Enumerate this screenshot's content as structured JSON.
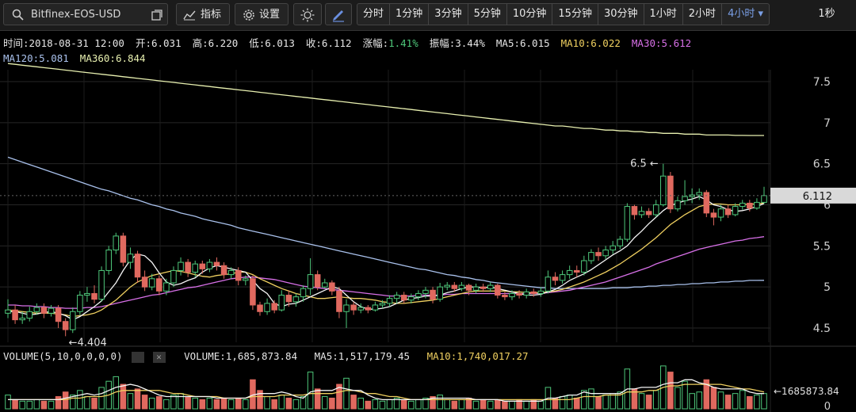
{
  "toolbar": {
    "symbol": "Bitfinex-EOS-USD",
    "indicator_label": "指标",
    "settings_label": "设置",
    "timeframes": [
      "分时",
      "1分钟",
      "3分钟",
      "5分钟",
      "10分钟",
      "15分钟",
      "30分钟",
      "1小时",
      "2小时",
      "4小时"
    ],
    "active_timeframe": "4小时",
    "refresh_label": "1秒"
  },
  "info": {
    "time": "时间:2018-08-31 12:00",
    "open": "开:6.031",
    "high": "高:6.220",
    "low": "低:6.013",
    "close": "收:6.112",
    "change_label": "涨幅:",
    "change_value": "1.41%",
    "amplitude": "振幅:3.44%",
    "ma5": "MA5:6.015",
    "ma10": "MA10:6.022",
    "ma30": "MA30:5.612",
    "ma120": "MA120:5.081",
    "ma360": "MA360:6.844"
  },
  "volume_info": {
    "title": "VOLUME(5,10,0,0,0,0)",
    "volume": "VOLUME:1,685,873.84",
    "ma5": "MA5:1,517,179.45",
    "ma10": "MA10:1,740,017.27"
  },
  "chart_data": {
    "type": "candlestick",
    "y_ticks": [
      4.5,
      5,
      5.5,
      6,
      6.5,
      7,
      7.5
    ],
    "y_tick_labels": [
      "4.5",
      "5",
      "5.5",
      "6",
      "6.5",
      "7",
      "7.5"
    ],
    "ylim": [
      4.3,
      7.75
    ],
    "current_price": "6.112",
    "high_marker": "6.5",
    "low_marker": "4.404",
    "volume_tick_label": "0",
    "volume_marker": "1685873.84",
    "colors": {
      "up": "#4ec77a",
      "down": "#e0695f",
      "ma5": "#f5f5f5",
      "ma10": "#f0d060",
      "ma30": "#d870e8",
      "ma120": "#a9c1ec",
      "ma360": "#e8f0b0"
    },
    "candles": [
      [
        4.68,
        4.72,
        4.62,
        4.85
      ],
      [
        4.72,
        4.6,
        4.55,
        4.78
      ],
      [
        4.6,
        4.62,
        4.55,
        4.7
      ],
      [
        4.62,
        4.7,
        4.58,
        4.76
      ],
      [
        4.7,
        4.75,
        4.66,
        4.8
      ],
      [
        4.75,
        4.68,
        4.62,
        4.8
      ],
      [
        4.68,
        4.74,
        4.64,
        4.78
      ],
      [
        4.74,
        4.58,
        4.5,
        4.78
      ],
      [
        4.58,
        4.48,
        4.4,
        4.62
      ],
      [
        4.48,
        4.7,
        4.44,
        4.75
      ],
      [
        4.7,
        4.9,
        4.66,
        4.95
      ],
      [
        4.9,
        4.92,
        4.82,
        5.0
      ],
      [
        4.92,
        4.85,
        4.8,
        5.02
      ],
      [
        4.85,
        5.2,
        4.82,
        5.25
      ],
      [
        5.2,
        5.45,
        5.15,
        5.5
      ],
      [
        5.45,
        5.62,
        5.4,
        5.66
      ],
      [
        5.62,
        5.3,
        5.25,
        5.66
      ],
      [
        5.3,
        5.4,
        5.22,
        5.48
      ],
      [
        5.4,
        5.12,
        5.05,
        5.44
      ],
      [
        5.12,
        5.0,
        4.95,
        5.2
      ],
      [
        5.0,
        5.1,
        4.96,
        5.16
      ],
      [
        5.1,
        4.95,
        4.9,
        5.14
      ],
      [
        4.95,
        5.05,
        4.9,
        5.1
      ],
      [
        5.05,
        5.2,
        5.0,
        5.25
      ],
      [
        5.2,
        5.3,
        5.14,
        5.36
      ],
      [
        5.3,
        5.18,
        5.12,
        5.34
      ],
      [
        5.18,
        5.28,
        5.12,
        5.32
      ],
      [
        5.28,
        5.22,
        5.16,
        5.32
      ],
      [
        5.22,
        5.3,
        5.18,
        5.34
      ],
      [
        5.3,
        5.26,
        5.2,
        5.36
      ],
      [
        5.26,
        5.15,
        5.1,
        5.3
      ],
      [
        5.15,
        5.2,
        5.1,
        5.24
      ],
      [
        5.2,
        5.08,
        5.02,
        5.24
      ],
      [
        5.08,
        5.1,
        5.02,
        5.14
      ],
      [
        5.1,
        4.78,
        4.72,
        5.14
      ],
      [
        4.78,
        4.7,
        4.65,
        4.82
      ],
      [
        4.7,
        4.8,
        4.66,
        4.86
      ],
      [
        4.8,
        4.72,
        4.68,
        4.84
      ],
      [
        4.72,
        4.9,
        4.7,
        4.96
      ],
      [
        4.9,
        4.82,
        4.76,
        4.96
      ],
      [
        4.82,
        4.88,
        4.76,
        4.92
      ],
      [
        4.88,
        4.98,
        4.82,
        5.02
      ],
      [
        4.98,
        5.15,
        4.9,
        5.35
      ],
      [
        5.15,
        5.0,
        4.96,
        5.2
      ],
      [
        5.0,
        5.05,
        4.98,
        5.1
      ],
      [
        5.05,
        4.95,
        4.9,
        5.08
      ],
      [
        4.95,
        4.7,
        4.62,
        5.0
      ],
      [
        4.7,
        4.78,
        4.5,
        4.85
      ],
      [
        4.78,
        4.72,
        4.66,
        4.82
      ],
      [
        4.72,
        4.75,
        4.68,
        4.8
      ],
      [
        4.75,
        4.72,
        4.68,
        4.78
      ],
      [
        4.72,
        4.78,
        4.7,
        4.82
      ],
      [
        4.78,
        4.8,
        4.74,
        4.84
      ],
      [
        4.8,
        4.86,
        4.76,
        4.9
      ],
      [
        4.86,
        4.9,
        4.8,
        4.94
      ],
      [
        4.9,
        4.84,
        4.8,
        4.94
      ],
      [
        4.84,
        4.88,
        4.8,
        4.92
      ],
      [
        4.88,
        4.92,
        4.84,
        4.96
      ],
      [
        4.92,
        4.96,
        4.86,
        5.0
      ],
      [
        4.96,
        4.85,
        4.8,
        5.0
      ],
      [
        4.85,
        5.0,
        4.82,
        5.05
      ],
      [
        5.0,
        5.02,
        4.96,
        5.06
      ],
      [
        5.02,
        4.98,
        4.94,
        5.06
      ],
      [
        4.98,
        5.02,
        4.95,
        5.06
      ],
      [
        5.02,
        4.96,
        4.9,
        5.04
      ],
      [
        4.96,
        5.0,
        4.92,
        5.04
      ],
      [
        5.0,
        4.98,
        4.94,
        5.04
      ],
      [
        4.98,
        5.02,
        4.94,
        5.06
      ],
      [
        5.02,
        4.9,
        4.86,
        5.04
      ],
      [
        4.9,
        4.88,
        4.84,
        4.94
      ],
      [
        4.88,
        4.92,
        4.84,
        4.96
      ],
      [
        4.92,
        4.9,
        4.86,
        4.96
      ],
      [
        4.9,
        4.94,
        4.86,
        4.98
      ],
      [
        4.94,
        4.92,
        4.88,
        4.98
      ],
      [
        4.92,
        4.95,
        4.88,
        5.0
      ],
      [
        4.95,
        5.12,
        4.92,
        5.2
      ],
      [
        5.12,
        5.08,
        5.02,
        5.18
      ],
      [
        5.08,
        5.15,
        5.04,
        5.2
      ],
      [
        5.15,
        5.2,
        5.1,
        5.26
      ],
      [
        5.2,
        5.18,
        5.12,
        5.26
      ],
      [
        5.18,
        5.32,
        5.14,
        5.38
      ],
      [
        5.32,
        5.42,
        5.28,
        5.46
      ],
      [
        5.42,
        5.38,
        5.32,
        5.48
      ],
      [
        5.38,
        5.45,
        5.34,
        5.5
      ],
      [
        5.45,
        5.5,
        5.4,
        5.56
      ],
      [
        5.5,
        5.58,
        5.46,
        5.62
      ],
      [
        5.58,
        5.98,
        5.55,
        6.02
      ],
      [
        5.98,
        5.88,
        5.82,
        6.0
      ],
      [
        5.88,
        5.92,
        5.84,
        5.98
      ],
      [
        5.92,
        5.88,
        5.84,
        5.96
      ],
      [
        5.88,
        6.0,
        5.85,
        6.06
      ],
      [
        6.0,
        6.35,
        5.98,
        6.5
      ],
      [
        6.35,
        5.95,
        5.9,
        6.4
      ],
      [
        5.95,
        6.05,
        5.92,
        6.1
      ],
      [
        6.05,
        6.1,
        6.0,
        6.3
      ],
      [
        6.1,
        6.12,
        6.02,
        6.2
      ],
      [
        6.12,
        6.15,
        6.06,
        6.2
      ],
      [
        6.15,
        5.9,
        5.85,
        6.18
      ],
      [
        5.9,
        5.85,
        5.75,
        5.95
      ],
      [
        5.85,
        5.95,
        5.8,
        6.0
      ],
      [
        5.95,
        5.88,
        5.84,
        6.0
      ],
      [
        5.88,
        5.98,
        5.86,
        6.02
      ],
      [
        5.98,
        6.02,
        5.94,
        6.06
      ],
      [
        6.02,
        5.96,
        5.92,
        6.06
      ],
      [
        5.96,
        6.03,
        5.94,
        6.08
      ],
      [
        6.03,
        6.112,
        6.013,
        6.22
      ]
    ],
    "volumes": [
      0.9,
      0.6,
      0.5,
      0.5,
      0.6,
      0.5,
      0.5,
      0.8,
      1.1,
      0.9,
      1.2,
      0.8,
      0.7,
      1.4,
      1.8,
      2.1,
      1.6,
      1.0,
      1.3,
      0.9,
      0.7,
      0.8,
      0.6,
      0.9,
      1.0,
      0.8,
      0.7,
      0.6,
      0.7,
      0.6,
      0.7,
      0.6,
      0.7,
      0.6,
      1.9,
      1.2,
      0.8,
      0.6,
      0.9,
      0.7,
      0.6,
      0.8,
      2.4,
      1.3,
      0.8,
      0.7,
      1.6,
      2.0,
      0.9,
      0.7,
      0.5,
      0.6,
      0.5,
      0.6,
      0.7,
      0.6,
      0.5,
      0.6,
      0.7,
      0.8,
      0.9,
      0.6,
      0.5,
      0.6,
      0.7,
      0.5,
      0.6,
      0.5,
      0.6,
      0.5,
      0.5,
      0.6,
      0.5,
      0.6,
      0.5,
      1.4,
      0.7,
      0.8,
      0.9,
      0.7,
      1.2,
      1.3,
      0.8,
      0.9,
      1.0,
      1.1,
      2.6,
      1.3,
      1.0,
      0.9,
      1.2,
      2.8,
      2.4,
      1.4,
      1.8,
      1.0,
      1.1,
      1.9,
      1.4,
      1.1,
      0.9,
      1.0,
      1.2,
      0.8,
      0.9,
      1.0
    ],
    "vol_ma5": [
      0.6,
      0.6,
      0.6,
      0.6,
      0.6,
      0.6,
      0.6,
      0.6,
      0.7,
      0.8,
      0.9,
      1.0,
      0.9,
      1.0,
      1.2,
      1.4,
      1.5,
      1.6,
      1.5,
      1.3,
      1.1,
      0.9,
      0.8,
      0.8,
      0.8,
      0.8,
      0.8,
      0.8,
      0.8,
      0.7,
      0.7,
      0.7,
      0.7,
      0.7,
      0.9,
      1.0,
      1.0,
      1.0,
      1.1,
      1.0,
      0.8,
      0.7,
      1.1,
      1.2,
      1.2,
      1.2,
      1.4,
      1.3,
      1.2,
      1.2,
      0.9,
      0.7,
      0.6,
      0.6,
      0.6,
      0.6,
      0.6,
      0.6,
      0.6,
      0.7,
      0.7,
      0.7,
      0.7,
      0.7,
      0.7,
      0.6,
      0.6,
      0.6,
      0.6,
      0.5,
      0.5,
      0.5,
      0.5,
      0.5,
      0.5,
      0.7,
      0.7,
      0.8,
      0.9,
      0.9,
      1.1,
      1.0,
      1.0,
      1.0,
      1.0,
      1.0,
      1.3,
      1.3,
      1.4,
      1.4,
      1.4,
      1.6,
      1.7,
      1.7,
      1.9,
      1.9,
      1.7,
      1.6,
      1.4,
      1.3,
      1.3,
      1.3,
      1.3,
      1.1,
      1.0,
      1.0
    ],
    "vol_ma10": [
      0.6,
      0.6,
      0.6,
      0.6,
      0.6,
      0.6,
      0.6,
      0.6,
      0.6,
      0.7,
      0.7,
      0.8,
      0.8,
      0.8,
      0.9,
      1.1,
      1.2,
      1.2,
      1.2,
      1.2,
      1.2,
      1.2,
      1.1,
      1.0,
      1.0,
      0.9,
      0.8,
      0.8,
      0.8,
      0.8,
      0.7,
      0.7,
      0.7,
      0.7,
      0.8,
      0.8,
      0.8,
      0.8,
      0.9,
      0.9,
      0.9,
      0.9,
      1.0,
      1.0,
      1.0,
      1.0,
      1.1,
      1.2,
      1.2,
      1.1,
      1.0,
      1.0,
      0.9,
      0.8,
      0.8,
      0.7,
      0.6,
      0.6,
      0.6,
      0.6,
      0.6,
      0.6,
      0.6,
      0.6,
      0.6,
      0.6,
      0.6,
      0.6,
      0.6,
      0.6,
      0.6,
      0.6,
      0.6,
      0.6,
      0.6,
      0.6,
      0.6,
      0.6,
      0.6,
      0.7,
      0.8,
      0.8,
      0.8,
      0.9,
      0.9,
      0.9,
      1.1,
      1.1,
      1.1,
      1.2,
      1.2,
      1.4,
      1.5,
      1.5,
      1.6,
      1.6,
      1.6,
      1.6,
      1.6,
      1.6,
      1.5,
      1.4,
      1.3,
      1.3,
      1.2,
      1.1
    ],
    "ma5": [
      4.7,
      4.7,
      4.68,
      4.66,
      4.67,
      4.69,
      4.7,
      4.68,
      4.65,
      4.6,
      4.64,
      4.7,
      4.76,
      4.83,
      4.94,
      5.05,
      5.2,
      5.33,
      5.4,
      5.38,
      5.3,
      5.17,
      5.06,
      5.02,
      5.04,
      5.08,
      5.11,
      5.18,
      5.23,
      5.26,
      5.24,
      5.22,
      5.2,
      5.18,
      5.08,
      4.98,
      4.92,
      4.8,
      4.76,
      4.79,
      4.8,
      4.84,
      4.88,
      4.92,
      4.96,
      5.0,
      4.98,
      4.9,
      4.82,
      4.76,
      4.73,
      4.73,
      4.74,
      4.76,
      4.8,
      4.84,
      4.86,
      4.87,
      4.89,
      4.89,
      4.9,
      4.93,
      4.95,
      4.98,
      5.0,
      5.0,
      4.99,
      5.0,
      4.98,
      4.96,
      4.94,
      4.92,
      4.9,
      4.9,
      4.91,
      4.94,
      4.97,
      5.02,
      5.08,
      5.12,
      5.16,
      5.21,
      5.27,
      5.33,
      5.39,
      5.44,
      5.5,
      5.6,
      5.68,
      5.77,
      5.85,
      5.93,
      5.99,
      6.02,
      6.05,
      6.07,
      6.1,
      6.06,
      6.0,
      5.98,
      5.94,
      5.92,
      5.93,
      5.95,
      5.98,
      6.015
    ],
    "ma10": [
      4.72,
      4.71,
      4.7,
      4.69,
      4.68,
      4.68,
      4.68,
      4.67,
      4.66,
      4.64,
      4.65,
      4.66,
      4.68,
      4.72,
      4.78,
      4.84,
      4.92,
      5.0,
      5.06,
      5.1,
      5.14,
      5.16,
      5.18,
      5.2,
      5.19,
      5.17,
      5.15,
      5.13,
      5.12,
      5.14,
      5.15,
      5.16,
      5.18,
      5.18,
      5.15,
      5.1,
      5.06,
      5.02,
      4.98,
      4.95,
      4.92,
      4.9,
      4.88,
      4.86,
      4.86,
      4.87,
      4.88,
      4.87,
      4.86,
      4.86,
      4.85,
      4.84,
      4.82,
      4.81,
      4.8,
      4.8,
      4.81,
      4.82,
      4.83,
      4.84,
      4.86,
      4.88,
      4.9,
      4.92,
      4.94,
      4.95,
      4.95,
      4.95,
      4.95,
      4.95,
      4.94,
      4.94,
      4.93,
      4.93,
      4.93,
      4.94,
      4.95,
      4.97,
      5.0,
      5.03,
      5.06,
      5.1,
      5.14,
      5.18,
      5.23,
      5.28,
      5.34,
      5.4,
      5.46,
      5.53,
      5.6,
      5.68,
      5.76,
      5.82,
      5.88,
      5.93,
      5.98,
      6.0,
      6.01,
      6.01,
      6.0,
      6.0,
      6.0,
      6.01,
      6.01,
      6.022
    ],
    "ma30": [
      4.78,
      4.78,
      4.77,
      4.77,
      4.76,
      4.76,
      4.75,
      4.75,
      4.74,
      4.74,
      4.74,
      4.75,
      4.75,
      4.76,
      4.78,
      4.8,
      4.82,
      4.84,
      4.86,
      4.88,
      4.9,
      4.91,
      4.93,
      4.95,
      4.97,
      4.99,
      5.0,
      5.02,
      5.04,
      5.06,
      5.08,
      5.1,
      5.11,
      5.12,
      5.12,
      5.11,
      5.1,
      5.09,
      5.07,
      5.05,
      5.03,
      5.01,
      5.0,
      4.99,
      4.98,
      4.97,
      4.96,
      4.95,
      4.94,
      4.93,
      4.92,
      4.91,
      4.9,
      4.89,
      4.89,
      4.89,
      4.89,
      4.9,
      4.9,
      4.9,
      4.9,
      4.91,
      4.91,
      4.92,
      4.92,
      4.92,
      4.92,
      4.92,
      4.92,
      4.92,
      4.92,
      4.92,
      4.92,
      4.92,
      4.92,
      4.93,
      4.94,
      4.95,
      4.96,
      4.98,
      5.0,
      5.02,
      5.04,
      5.06,
      5.09,
      5.12,
      5.15,
      5.18,
      5.21,
      5.24,
      5.28,
      5.31,
      5.34,
      5.37,
      5.4,
      5.43,
      5.46,
      5.48,
      5.5,
      5.52,
      5.54,
      5.56,
      5.57,
      5.59,
      5.6,
      5.612
    ],
    "ma120": [
      6.58,
      6.55,
      6.52,
      6.49,
      6.46,
      6.43,
      6.4,
      6.37,
      6.34,
      6.31,
      6.28,
      6.25,
      6.22,
      6.19,
      6.17,
      6.14,
      6.11,
      6.08,
      6.06,
      6.03,
      6.0,
      5.98,
      5.95,
      5.93,
      5.9,
      5.88,
      5.86,
      5.83,
      5.81,
      5.79,
      5.77,
      5.75,
      5.72,
      5.7,
      5.68,
      5.66,
      5.64,
      5.62,
      5.6,
      5.58,
      5.56,
      5.54,
      5.52,
      5.5,
      5.48,
      5.46,
      5.44,
      5.42,
      5.4,
      5.38,
      5.36,
      5.34,
      5.32,
      5.3,
      5.28,
      5.26,
      5.24,
      5.22,
      5.21,
      5.19,
      5.17,
      5.15,
      5.14,
      5.12,
      5.11,
      5.09,
      5.08,
      5.06,
      5.05,
      5.04,
      5.03,
      5.02,
      5.01,
      5.0,
      4.99,
      4.99,
      4.98,
      4.98,
      4.98,
      4.98,
      4.98,
      4.98,
      4.98,
      4.98,
      4.99,
      4.99,
      4.99,
      5.0,
      5.0,
      5.01,
      5.01,
      5.02,
      5.02,
      5.03,
      5.03,
      5.04,
      5.04,
      5.05,
      5.05,
      5.06,
      5.06,
      5.07,
      5.07,
      5.08,
      5.08,
      5.081
    ],
    "ma360": [
      7.72,
      7.71,
      7.7,
      7.69,
      7.68,
      7.67,
      7.66,
      7.65,
      7.64,
      7.63,
      7.62,
      7.61,
      7.6,
      7.59,
      7.58,
      7.57,
      7.56,
      7.55,
      7.54,
      7.53,
      7.52,
      7.51,
      7.5,
      7.49,
      7.48,
      7.47,
      7.46,
      7.45,
      7.44,
      7.43,
      7.42,
      7.41,
      7.4,
      7.39,
      7.38,
      7.37,
      7.36,
      7.35,
      7.34,
      7.33,
      7.32,
      7.31,
      7.3,
      7.29,
      7.28,
      7.27,
      7.26,
      7.25,
      7.24,
      7.23,
      7.22,
      7.21,
      7.2,
      7.19,
      7.18,
      7.17,
      7.16,
      7.15,
      7.14,
      7.13,
      7.12,
      7.11,
      7.1,
      7.09,
      7.08,
      7.07,
      7.06,
      7.05,
      7.04,
      7.03,
      7.02,
      7.01,
      7.0,
      6.99,
      6.98,
      6.97,
      6.96,
      6.96,
      6.95,
      6.94,
      6.93,
      6.93,
      6.92,
      6.91,
      6.91,
      6.9,
      6.9,
      6.89,
      6.89,
      6.88,
      6.88,
      6.87,
      6.87,
      6.87,
      6.86,
      6.86,
      6.86,
      6.85,
      6.85,
      6.85,
      6.85,
      6.845,
      6.845,
      6.844,
      6.844,
      6.844
    ]
  }
}
